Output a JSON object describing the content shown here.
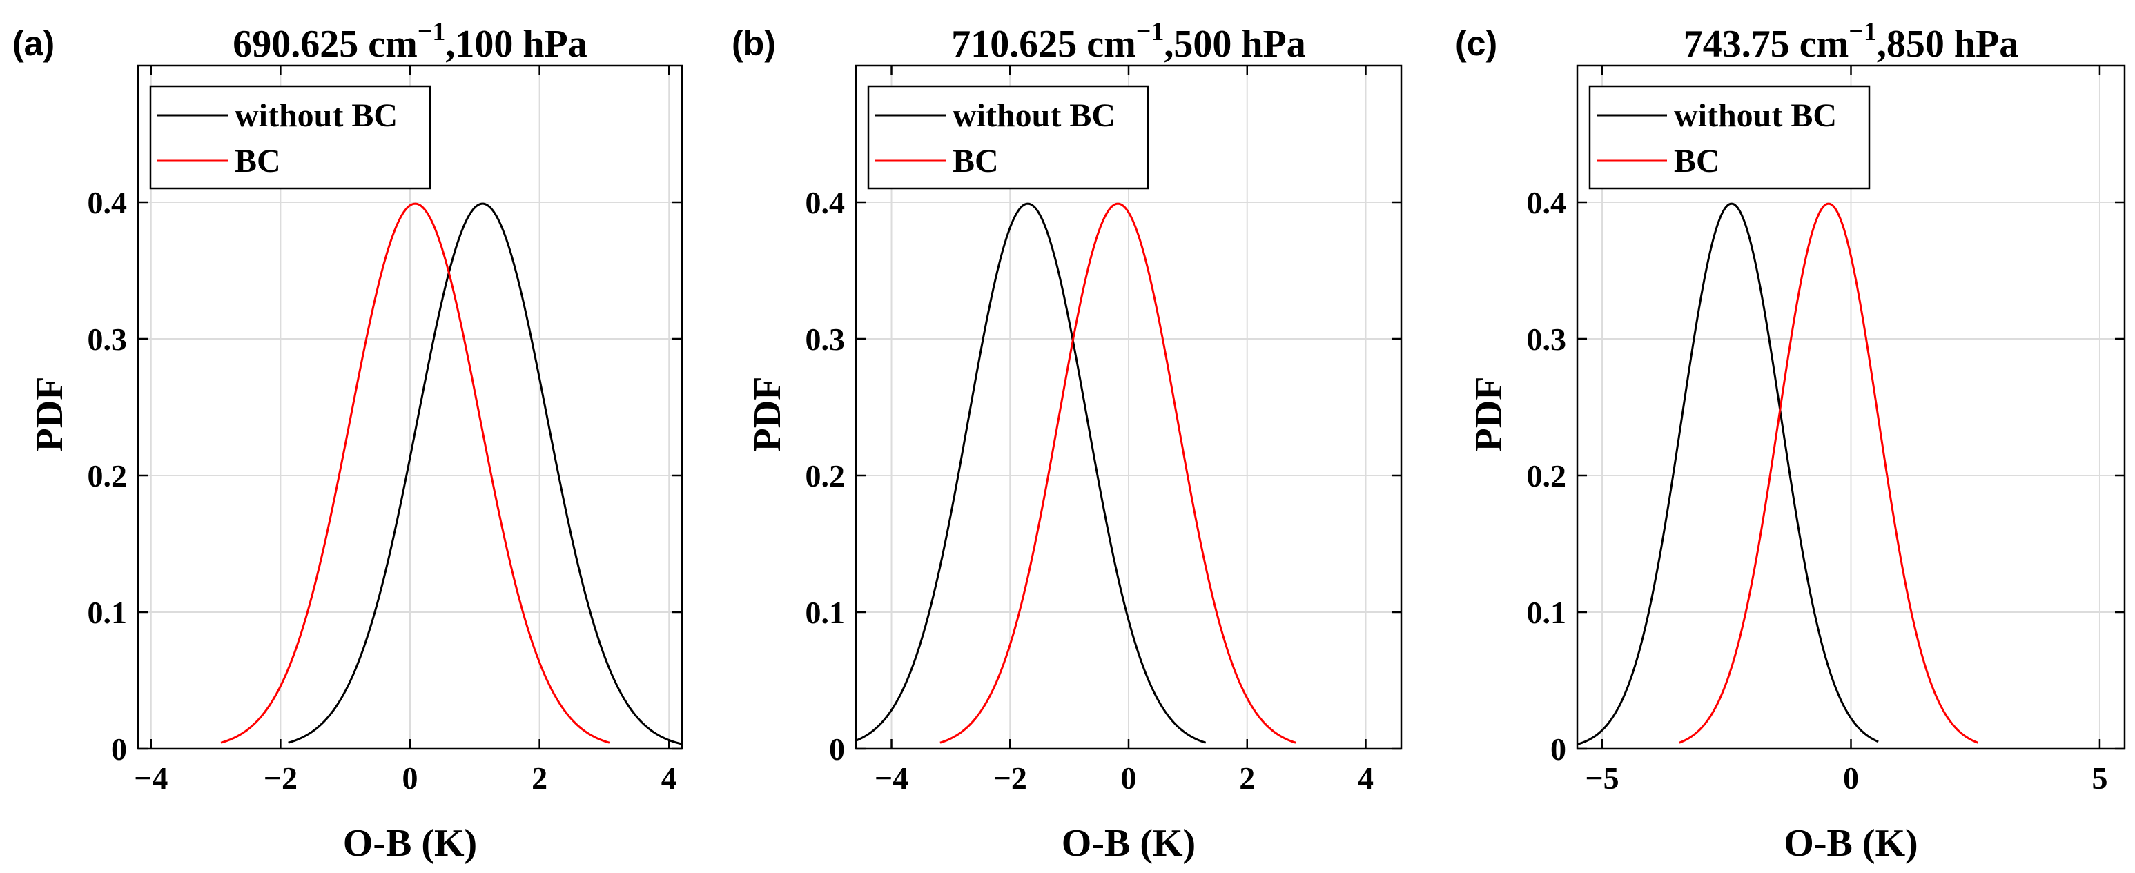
{
  "chart_data": [
    {
      "type": "line",
      "panel_label": "(a)",
      "title": {
        "main": "690.625 cm",
        "sup": "−1",
        "rest": ",100 hPa"
      },
      "xlabel": "O-B (K)",
      "ylabel": "PDF",
      "xlim": [
        -4.2,
        4.2
      ],
      "ylim": [
        0,
        0.5
      ],
      "xticks": [
        -4,
        -2,
        0,
        2,
        4
      ],
      "xtick_labels": [
        "−4",
        "−2",
        "0",
        "2",
        "4"
      ],
      "yticks": [
        0,
        0.1,
        0.2,
        0.3,
        0.4
      ],
      "ytick_labels": [
        "0",
        "0.1",
        "0.2",
        "0.3",
        "0.4"
      ],
      "grid": true,
      "legend_position": "top-left",
      "series": [
        {
          "name": "without BC",
          "color": "#000000",
          "mean": 1.12,
          "std": 1.0,
          "xmin": -1.88,
          "xmax": 4.2
        },
        {
          "name": "BC",
          "color": "#ff0000",
          "mean": 0.08,
          "std": 1.0,
          "xmin": -2.92,
          "xmax": 3.08
        }
      ]
    },
    {
      "type": "line",
      "panel_label": "(b)",
      "title": {
        "main": "710.625 cm",
        "sup": "−1",
        "rest": ",500 hPa"
      },
      "xlabel": "O-B (K)",
      "ylabel": "PDF",
      "xlim": [
        -4.6,
        4.6
      ],
      "ylim": [
        0,
        0.5
      ],
      "xticks": [
        -4,
        -2,
        0,
        2,
        4
      ],
      "xtick_labels": [
        "−4",
        "−2",
        "0",
        "2",
        "4"
      ],
      "yticks": [
        0,
        0.1,
        0.2,
        0.3,
        0.4
      ],
      "ytick_labels": [
        "0",
        "0.1",
        "0.2",
        "0.3",
        "0.4"
      ],
      "grid": true,
      "legend_position": "top-left",
      "series": [
        {
          "name": "without BC",
          "color": "#000000",
          "mean": -1.7,
          "std": 1.0,
          "xmin": -4.6,
          "xmax": 1.3
        },
        {
          "name": "BC",
          "color": "#ff0000",
          "mean": -0.18,
          "std": 1.0,
          "xmin": -3.18,
          "xmax": 2.82
        }
      ]
    },
    {
      "type": "line",
      "panel_label": "(c)",
      "title": {
        "main": "743.75 cm",
        "sup": "−1",
        "rest": ",850 hPa"
      },
      "xlabel": "O-B (K)",
      "ylabel": "PDF",
      "xlim": [
        -5.5,
        5.5
      ],
      "ylim": [
        0,
        0.5
      ],
      "xticks": [
        -5,
        0,
        5
      ],
      "xtick_labels": [
        "−5",
        "0",
        "5"
      ],
      "yticks": [
        0,
        0.1,
        0.2,
        0.3,
        0.4
      ],
      "ytick_labels": [
        "0",
        "0.1",
        "0.2",
        "0.3",
        "0.4"
      ],
      "grid": true,
      "legend_position": "top-left",
      "series": [
        {
          "name": "without BC",
          "color": "#000000",
          "mean": -2.4,
          "std": 1.0,
          "xmin": -5.5,
          "xmax": 0.55
        },
        {
          "name": "BC",
          "color": "#ff0000",
          "mean": -0.45,
          "std": 1.0,
          "xmin": -3.45,
          "xmax": 2.55
        }
      ]
    }
  ]
}
